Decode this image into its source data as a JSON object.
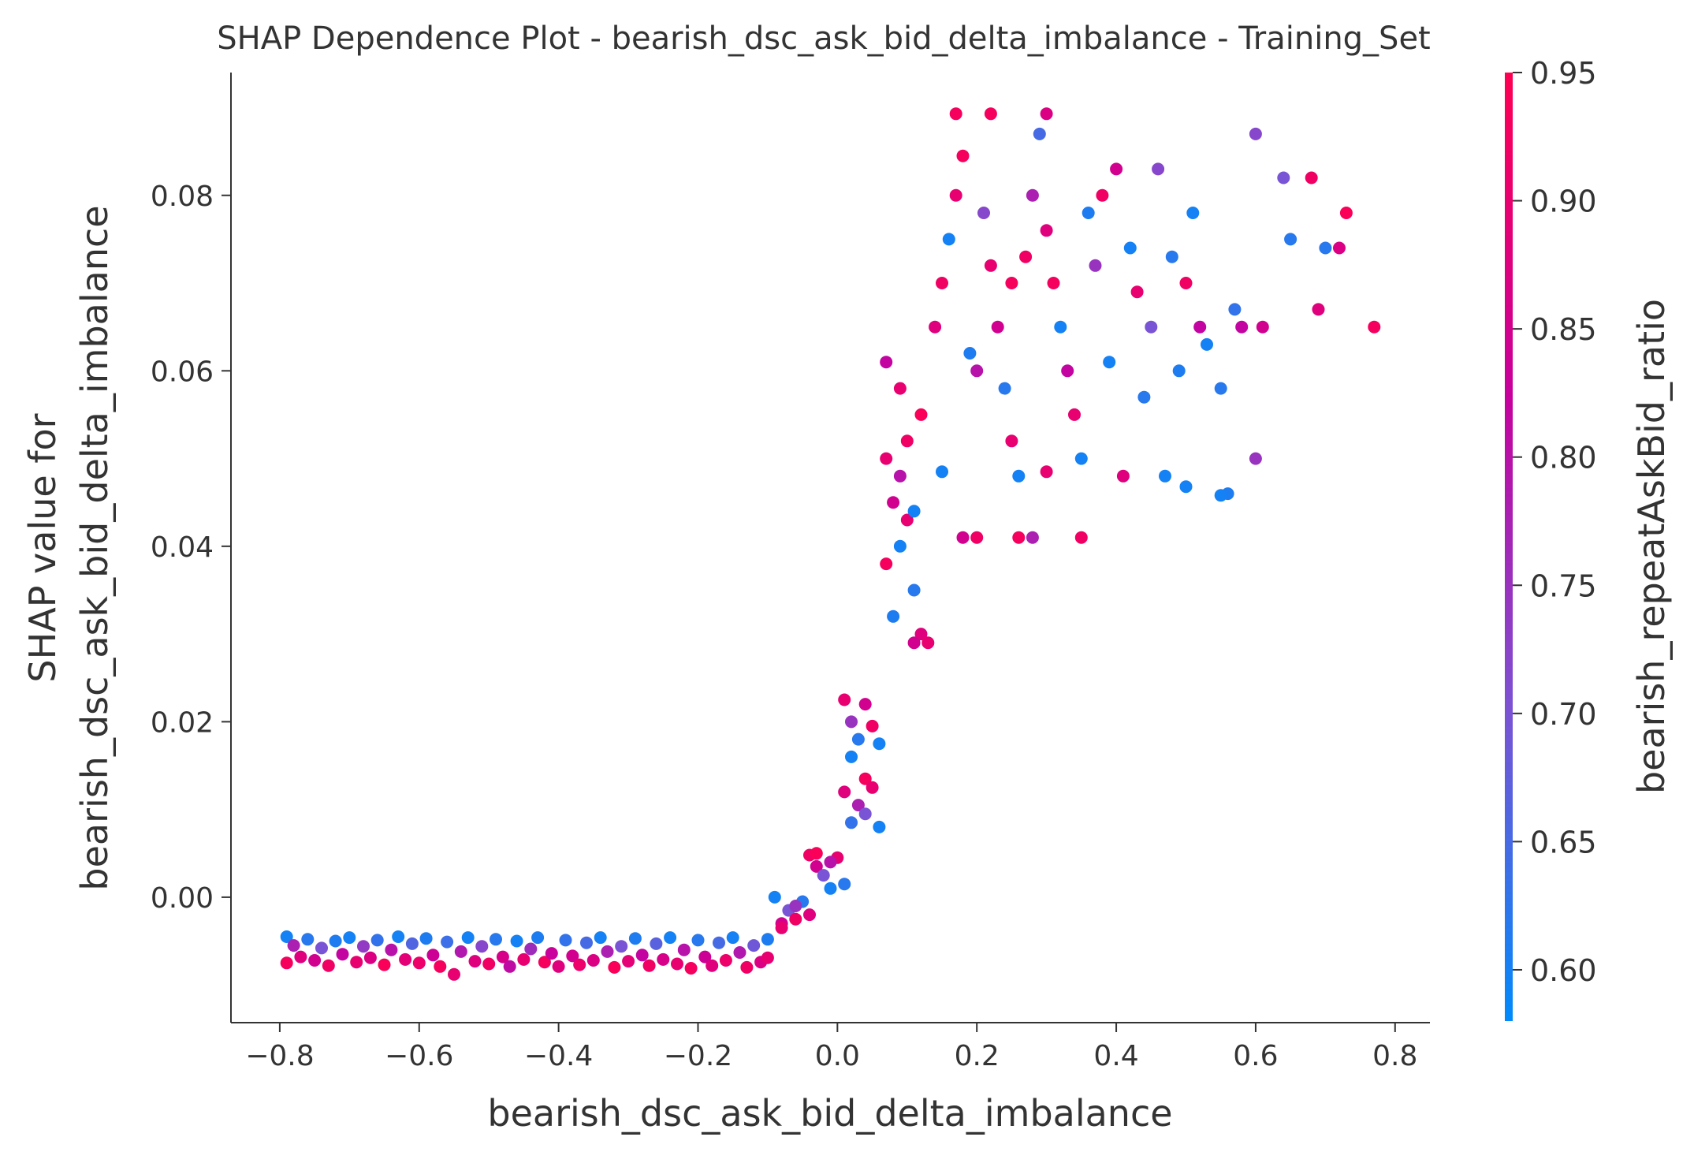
{
  "chart_data": {
    "type": "scatter",
    "title": "SHAP Dependence Plot - bearish_dsc_ask_bid_delta_imbalance - Training_Set",
    "xlabel": "bearish_dsc_ask_bid_delta_imbalance",
    "ylabel_line1": "SHAP value for",
    "ylabel_line2": "bearish_dsc_ask_bid_delta_imbalance",
    "xlim": [
      -0.87,
      0.85
    ],
    "ylim": [
      -0.0143,
      0.094
    ],
    "xticks": [
      {
        "value": -0.8,
        "label": "−0.8"
      },
      {
        "value": -0.6,
        "label": "−0.6"
      },
      {
        "value": -0.4,
        "label": "−0.4"
      },
      {
        "value": -0.2,
        "label": "−0.2"
      },
      {
        "value": 0.0,
        "label": "0.0"
      },
      {
        "value": 0.2,
        "label": "0.2"
      },
      {
        "value": 0.4,
        "label": "0.4"
      },
      {
        "value": 0.6,
        "label": "0.6"
      },
      {
        "value": 0.8,
        "label": "0.8"
      }
    ],
    "yticks": [
      {
        "value": 0.0,
        "label": "0.00"
      },
      {
        "value": 0.02,
        "label": "0.02"
      },
      {
        "value": 0.04,
        "label": "0.04"
      },
      {
        "value": 0.06,
        "label": "0.06"
      },
      {
        "value": 0.08,
        "label": "0.08"
      }
    ],
    "colorbar": {
      "label": "bearish_repeatAskBid_ratio",
      "range": [
        0.58,
        0.95
      ],
      "ticks": [
        {
          "value": 0.6,
          "label": "0.60"
        },
        {
          "value": 0.65,
          "label": "0.65"
        },
        {
          "value": 0.7,
          "label": "0.70"
        },
        {
          "value": 0.75,
          "label": "0.75"
        },
        {
          "value": 0.8,
          "label": "0.80"
        },
        {
          "value": 0.85,
          "label": "0.85"
        },
        {
          "value": 0.9,
          "label": "0.90"
        },
        {
          "value": 0.95,
          "label": "0.95"
        }
      ],
      "colors": [
        "#008afb",
        "#7c52d3",
        "#c7009d",
        "#ff0052"
      ]
    },
    "grid": false,
    "points": [
      [
        -0.79,
        -0.0045,
        0.6
      ],
      [
        -0.79,
        -0.0075,
        0.93
      ],
      [
        -0.78,
        -0.0055,
        0.78
      ],
      [
        -0.77,
        -0.0068,
        0.88
      ],
      [
        -0.76,
        -0.0048,
        0.62
      ],
      [
        -0.75,
        -0.0072,
        0.85
      ],
      [
        -0.74,
        -0.0058,
        0.7
      ],
      [
        -0.73,
        -0.0078,
        0.92
      ],
      [
        -0.72,
        -0.005,
        0.61
      ],
      [
        -0.71,
        -0.0065,
        0.82
      ],
      [
        -0.7,
        -0.0046,
        0.6
      ],
      [
        -0.69,
        -0.0074,
        0.9
      ],
      [
        -0.68,
        -0.0056,
        0.74
      ],
      [
        -0.67,
        -0.0069,
        0.87
      ],
      [
        -0.66,
        -0.0049,
        0.63
      ],
      [
        -0.65,
        -0.0077,
        0.94
      ],
      [
        -0.64,
        -0.006,
        0.8
      ],
      [
        -0.63,
        -0.0045,
        0.6
      ],
      [
        -0.62,
        -0.0071,
        0.89
      ],
      [
        -0.61,
        -0.0053,
        0.66
      ],
      [
        -0.6,
        -0.0075,
        0.91
      ],
      [
        -0.59,
        -0.0047,
        0.61
      ],
      [
        -0.58,
        -0.0066,
        0.84
      ],
      [
        -0.57,
        -0.0079,
        0.93
      ],
      [
        -0.56,
        -0.0051,
        0.64
      ],
      [
        -0.55,
        -0.0088,
        0.9
      ],
      [
        -0.54,
        -0.0062,
        0.79
      ],
      [
        -0.53,
        -0.0046,
        0.6
      ],
      [
        -0.52,
        -0.0073,
        0.88
      ],
      [
        -0.51,
        -0.0056,
        0.72
      ],
      [
        -0.5,
        -0.0076,
        0.92
      ],
      [
        -0.49,
        -0.0048,
        0.62
      ],
      [
        -0.48,
        -0.0068,
        0.86
      ],
      [
        -0.47,
        -0.0079,
        0.81
      ],
      [
        -0.46,
        -0.005,
        0.6
      ],
      [
        -0.45,
        -0.0071,
        0.9
      ],
      [
        -0.44,
        -0.0059,
        0.76
      ],
      [
        -0.43,
        -0.0046,
        0.61
      ],
      [
        -0.42,
        -0.0074,
        0.93
      ],
      [
        -0.41,
        -0.0064,
        0.83
      ],
      [
        -0.4,
        -0.0079,
        0.88
      ],
      [
        -0.39,
        -0.0049,
        0.63
      ],
      [
        -0.38,
        -0.0067,
        0.85
      ],
      [
        -0.37,
        -0.0077,
        0.91
      ],
      [
        -0.36,
        -0.0052,
        0.65
      ],
      [
        -0.35,
        -0.0072,
        0.87
      ],
      [
        -0.34,
        -0.0046,
        0.6
      ],
      [
        -0.33,
        -0.0062,
        0.78
      ],
      [
        -0.32,
        -0.008,
        0.94
      ],
      [
        -0.31,
        -0.0056,
        0.7
      ],
      [
        -0.3,
        -0.0073,
        0.89
      ],
      [
        -0.29,
        -0.0047,
        0.61
      ],
      [
        -0.28,
        -0.0066,
        0.82
      ],
      [
        -0.27,
        -0.0078,
        0.92
      ],
      [
        -0.26,
        -0.0053,
        0.67
      ],
      [
        -0.25,
        -0.0071,
        0.86
      ],
      [
        -0.24,
        -0.0046,
        0.6
      ],
      [
        -0.23,
        -0.0076,
        0.9
      ],
      [
        -0.22,
        -0.006,
        0.8
      ],
      [
        -0.21,
        -0.0081,
        0.93
      ],
      [
        -0.2,
        -0.0049,
        0.62
      ],
      [
        -0.19,
        -0.0068,
        0.84
      ],
      [
        -0.18,
        -0.0078,
        0.88
      ],
      [
        -0.17,
        -0.0052,
        0.65
      ],
      [
        -0.16,
        -0.0072,
        0.91
      ],
      [
        -0.15,
        -0.0046,
        0.6
      ],
      [
        -0.14,
        -0.0063,
        0.79
      ],
      [
        -0.13,
        -0.008,
        0.92
      ],
      [
        -0.12,
        -0.0055,
        0.69
      ],
      [
        -0.11,
        -0.0074,
        0.87
      ],
      [
        -0.1,
        -0.0048,
        0.61
      ],
      [
        -0.1,
        -0.0069,
        0.9
      ],
      [
        -0.09,
        0.0,
        0.6
      ],
      [
        -0.08,
        -0.003,
        0.85
      ],
      [
        -0.07,
        -0.0015,
        0.7
      ],
      [
        -0.06,
        -0.0025,
        0.92
      ],
      [
        -0.05,
        -0.0005,
        0.62
      ],
      [
        -0.04,
        -0.002,
        0.88
      ],
      [
        -0.08,
        -0.0035,
        0.9
      ],
      [
        -0.06,
        -0.001,
        0.75
      ],
      [
        -0.04,
        0.0048,
        0.92
      ],
      [
        -0.03,
        0.0035,
        0.85
      ],
      [
        -0.02,
        0.0025,
        0.7
      ],
      [
        -0.01,
        0.001,
        0.6
      ],
      [
        0.0,
        0.0045,
        0.9
      ],
      [
        0.01,
        0.0015,
        0.62
      ],
      [
        -0.03,
        0.005,
        0.94
      ],
      [
        -0.01,
        0.004,
        0.8
      ],
      [
        0.01,
        0.0225,
        0.9
      ],
      [
        0.02,
        0.02,
        0.75
      ],
      [
        0.03,
        0.018,
        0.62
      ],
      [
        0.04,
        0.022,
        0.85
      ],
      [
        0.05,
        0.0195,
        0.92
      ],
      [
        0.06,
        0.0175,
        0.6
      ],
      [
        0.02,
        0.016,
        0.6
      ],
      [
        0.04,
        0.0135,
        0.93
      ],
      [
        0.01,
        0.012,
        0.88
      ],
      [
        0.03,
        0.0105,
        0.78
      ],
      [
        0.05,
        0.0125,
        0.9
      ],
      [
        0.06,
        0.008,
        0.6
      ],
      [
        0.02,
        0.0085,
        0.63
      ],
      [
        0.04,
        0.0095,
        0.7
      ],
      [
        0.07,
        0.05,
        0.9
      ],
      [
        0.08,
        0.045,
        0.85
      ],
      [
        0.09,
        0.04,
        0.6
      ],
      [
        0.1,
        0.052,
        0.92
      ],
      [
        0.11,
        0.035,
        0.62
      ],
      [
        0.12,
        0.03,
        0.88
      ],
      [
        0.07,
        0.038,
        0.93
      ],
      [
        0.08,
        0.032,
        0.61
      ],
      [
        0.09,
        0.048,
        0.8
      ],
      [
        0.1,
        0.043,
        0.9
      ],
      [
        0.11,
        0.029,
        0.85
      ],
      [
        0.12,
        0.055,
        0.94
      ],
      [
        0.07,
        0.061,
        0.82
      ],
      [
        0.09,
        0.058,
        0.9
      ],
      [
        0.11,
        0.044,
        0.6
      ],
      [
        0.13,
        0.029,
        0.9
      ],
      [
        0.14,
        0.065,
        0.88
      ],
      [
        0.15,
        0.07,
        0.92
      ],
      [
        0.16,
        0.075,
        0.6
      ],
      [
        0.17,
        0.08,
        0.9
      ],
      [
        0.18,
        0.0845,
        0.93
      ],
      [
        0.19,
        0.062,
        0.61
      ],
      [
        0.2,
        0.06,
        0.8
      ],
      [
        0.21,
        0.078,
        0.72
      ],
      [
        0.22,
        0.072,
        0.9
      ],
      [
        0.23,
        0.065,
        0.85
      ],
      [
        0.24,
        0.058,
        0.62
      ],
      [
        0.25,
        0.052,
        0.9
      ],
      [
        0.26,
        0.048,
        0.6
      ],
      [
        0.27,
        0.073,
        0.92
      ],
      [
        0.28,
        0.08,
        0.78
      ],
      [
        0.29,
        0.087,
        0.65
      ],
      [
        0.3,
        0.076,
        0.88
      ],
      [
        0.31,
        0.07,
        0.93
      ],
      [
        0.32,
        0.065,
        0.6
      ],
      [
        0.33,
        0.06,
        0.82
      ],
      [
        0.34,
        0.055,
        0.9
      ],
      [
        0.35,
        0.05,
        0.6
      ],
      [
        0.36,
        0.078,
        0.61
      ],
      [
        0.37,
        0.072,
        0.75
      ],
      [
        0.38,
        0.08,
        0.92
      ],
      [
        0.39,
        0.061,
        0.6
      ],
      [
        0.4,
        0.083,
        0.85
      ],
      [
        0.41,
        0.048,
        0.88
      ],
      [
        0.42,
        0.074,
        0.6
      ],
      [
        0.43,
        0.069,
        0.9
      ],
      [
        0.44,
        0.057,
        0.62
      ],
      [
        0.45,
        0.065,
        0.7
      ],
      [
        0.46,
        0.083,
        0.72
      ],
      [
        0.47,
        0.048,
        0.6
      ],
      [
        0.48,
        0.073,
        0.62
      ],
      [
        0.49,
        0.06,
        0.61
      ],
      [
        0.5,
        0.07,
        0.92
      ],
      [
        0.51,
        0.078,
        0.6
      ],
      [
        0.52,
        0.065,
        0.82
      ],
      [
        0.53,
        0.063,
        0.6
      ],
      [
        0.55,
        0.058,
        0.62
      ],
      [
        0.56,
        0.046,
        0.61
      ],
      [
        0.57,
        0.067,
        0.63
      ],
      [
        0.58,
        0.065,
        0.82
      ],
      [
        0.6,
        0.05,
        0.75
      ],
      [
        0.6,
        0.087,
        0.72
      ],
      [
        0.61,
        0.065,
        0.85
      ],
      [
        0.64,
        0.082,
        0.7
      ],
      [
        0.65,
        0.075,
        0.62
      ],
      [
        0.68,
        0.082,
        0.92
      ],
      [
        0.69,
        0.067,
        0.88
      ],
      [
        0.7,
        0.074,
        0.62
      ],
      [
        0.72,
        0.074,
        0.87
      ],
      [
        0.73,
        0.078,
        0.94
      ],
      [
        0.77,
        0.065,
        0.93
      ],
      [
        0.17,
        0.0893,
        0.93
      ],
      [
        0.22,
        0.0893,
        0.93
      ],
      [
        0.3,
        0.0893,
        0.87
      ],
      [
        0.2,
        0.041,
        0.92
      ],
      [
        0.28,
        0.041,
        0.78
      ],
      [
        0.35,
        0.041,
        0.92
      ],
      [
        0.18,
        0.041,
        0.85
      ],
      [
        0.26,
        0.041,
        0.93
      ],
      [
        0.5,
        0.0468,
        0.6
      ],
      [
        0.55,
        0.0458,
        0.6
      ],
      [
        0.25,
        0.07,
        0.93
      ],
      [
        0.15,
        0.0485,
        0.6
      ],
      [
        0.3,
        0.0485,
        0.9
      ]
    ]
  }
}
